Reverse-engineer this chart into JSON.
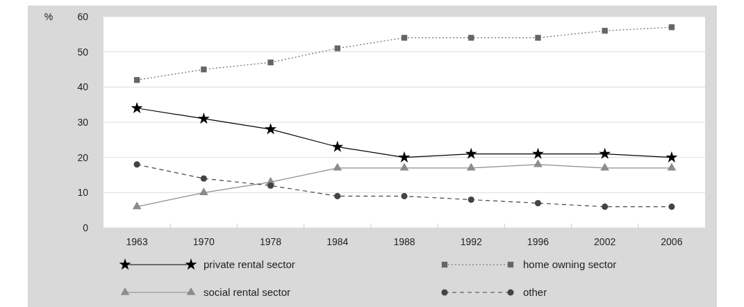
{
  "chart_data": {
    "type": "line",
    "ylabel": "%",
    "categories": [
      "1963",
      "1970",
      "1978",
      "1984",
      "1988",
      "1992",
      "1996",
      "2002",
      "2006"
    ],
    "series": [
      {
        "name": "private rental sector",
        "color": "#000000",
        "marker": "star",
        "line_style": "solid",
        "values": [
          34,
          31,
          28,
          23,
          20,
          21,
          21,
          21,
          20
        ]
      },
      {
        "name": "home owning sector",
        "color": "#666666",
        "marker": "square",
        "line_style": "dotted",
        "values": [
          42,
          45,
          47,
          51,
          54,
          54,
          54,
          56,
          57
        ]
      },
      {
        "name": "social rental sector",
        "color": "#8c8c8c",
        "marker": "triangle",
        "line_style": "solid",
        "values": [
          6,
          10,
          13,
          17,
          17,
          17,
          18,
          17,
          17
        ]
      },
      {
        "name": "other",
        "color": "#444444",
        "marker": "circle",
        "line_style": "dashed",
        "values": [
          18,
          14,
          12,
          9,
          9,
          8,
          7,
          6,
          6
        ]
      }
    ],
    "ylim": [
      0,
      60
    ],
    "yticks": [
      0,
      10,
      20,
      30,
      40,
      50,
      60
    ],
    "grid": "y",
    "legend": "bottom"
  }
}
